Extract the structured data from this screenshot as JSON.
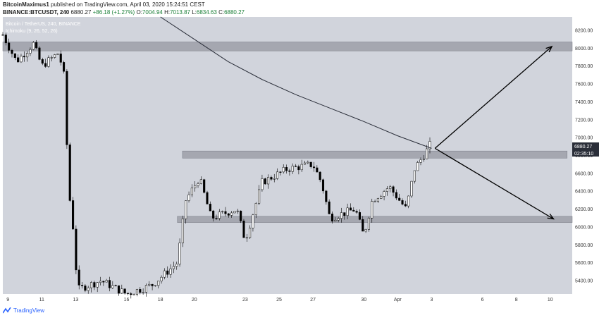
{
  "header": {
    "author": "BitcoinMaximus1",
    "published": "published on TradingView.com, April 03, 2020 15:24:51 CEST",
    "symbol": "BINANCE:BTCUSDT, 240",
    "price": "6880.27",
    "change": "+86.18 (+1.27%)",
    "o_label": "O:",
    "o_val": "7004.94",
    "h_label": "H:",
    "h_val": "7013.87",
    "l_label": "L:",
    "l_val": "6834.63",
    "c_label": "C:",
    "c_val": "6880.27"
  },
  "footer": {
    "brand": "TradingView"
  },
  "chart_data": {
    "type": "candlestick",
    "legend_title": "Bitcoin / TetherUS, 240, BINANCE",
    "legend_indicator": "Ichimoku (9, 26, 52, 26)",
    "price_tag": "6880.27",
    "timer_tag": "02:35:10",
    "ylim": [
      5250,
      8350
    ],
    "y_ticks": [
      8200,
      8000,
      7800,
      7600,
      7400,
      7200,
      7000,
      6800,
      6600,
      6400,
      6200,
      6000,
      5800,
      5600,
      5400
    ],
    "y_tick_labels": [
      "8200.00",
      "8000.00",
      "7800.00",
      "7600.00",
      "7400.00",
      "7200.00",
      "7000.00",
      "6800.00",
      "6600.00",
      "6400.00",
      "6200.00",
      "6000.00",
      "5800.00",
      "5600.00",
      "5400.00"
    ],
    "x_ticks": [
      {
        "label": "9",
        "day": 9
      },
      {
        "label": "11",
        "day": 11
      },
      {
        "label": "13",
        "day": 13
      },
      {
        "label": "16",
        "day": 16
      },
      {
        "label": "18",
        "day": 18
      },
      {
        "label": "20",
        "day": 20
      },
      {
        "label": "23",
        "day": 23
      },
      {
        "label": "25",
        "day": 25
      },
      {
        "label": "27",
        "day": 27
      },
      {
        "label": "30",
        "day": 30
      },
      {
        "label": "Apr",
        "day": 32
      },
      {
        "label": "3",
        "day": 34
      },
      {
        "label": "6",
        "day": 37
      },
      {
        "label": "8",
        "day": 39
      },
      {
        "label": "10",
        "day": 41
      }
    ],
    "x_domain_days": [
      8.7,
      42.3
    ],
    "zones": [
      {
        "day_start": 8.7,
        "day_end": 42.3,
        "y_low": 7970,
        "y_high": 8070
      },
      {
        "day_start": 19.3,
        "day_end": 42.0,
        "y_low": 6770,
        "y_high": 6850
      },
      {
        "day_start": 19.0,
        "day_end": 42.3,
        "y_low": 6050,
        "y_high": 6120
      }
    ],
    "ma_line": [
      {
        "day": 18.0,
        "price": 8350
      },
      {
        "day": 20.0,
        "price": 8100
      },
      {
        "day": 22.0,
        "price": 7850
      },
      {
        "day": 24.0,
        "price": 7650
      },
      {
        "day": 26.0,
        "price": 7480
      },
      {
        "day": 28.0,
        "price": 7330
      },
      {
        "day": 30.0,
        "price": 7180
      },
      {
        "day": 32.0,
        "price": 7020
      },
      {
        "day": 33.0,
        "price": 6950
      },
      {
        "day": 34.0,
        "price": 6880
      }
    ],
    "arrows": [
      {
        "from_day": 34.2,
        "from_price": 6880,
        "to_day": 41.1,
        "to_price": 8020
      },
      {
        "from_day": 34.2,
        "from_price": 6880,
        "to_day": 41.2,
        "to_price": 6090
      }
    ],
    "candles_keypoints": [
      {
        "day": 8.7,
        "price": 8150
      },
      {
        "day": 9.5,
        "price": 7850
      },
      {
        "day": 10.5,
        "price": 8050
      },
      {
        "day": 11.0,
        "price": 7800
      },
      {
        "day": 12.0,
        "price": 7950
      },
      {
        "day": 12.3,
        "price": 7700
      },
      {
        "day": 12.6,
        "price": 6400
      },
      {
        "day": 12.9,
        "price": 5900
      },
      {
        "day": 13.1,
        "price": 5300
      },
      {
        "day": 14.5,
        "price": 5400
      },
      {
        "day": 16.0,
        "price": 5250
      },
      {
        "day": 17.5,
        "price": 5350
      },
      {
        "day": 19.0,
        "price": 5600
      },
      {
        "day": 19.5,
        "price": 6300
      },
      {
        "day": 20.3,
        "price": 6550
      },
      {
        "day": 21.0,
        "price": 6100
      },
      {
        "day": 22.5,
        "price": 6200
      },
      {
        "day": 23.0,
        "price": 5850
      },
      {
        "day": 24.0,
        "price": 6500
      },
      {
        "day": 25.5,
        "price": 6650
      },
      {
        "day": 27.0,
        "price": 6700
      },
      {
        "day": 27.5,
        "price": 6500
      },
      {
        "day": 28.0,
        "price": 6100
      },
      {
        "day": 29.5,
        "price": 6200
      },
      {
        "day": 30.0,
        "price": 5900
      },
      {
        "day": 30.5,
        "price": 6300
      },
      {
        "day": 31.5,
        "price": 6450
      },
      {
        "day": 32.5,
        "price": 6200
      },
      {
        "day": 33.0,
        "price": 6650
      },
      {
        "day": 33.7,
        "price": 6850
      },
      {
        "day": 34.0,
        "price": 6950
      }
    ],
    "colors": {
      "background": "#d1d4dc",
      "candle": "#000000",
      "zone": "#9598a1",
      "ma": "#2a2e39",
      "price_tag": "#2a2e39"
    }
  }
}
